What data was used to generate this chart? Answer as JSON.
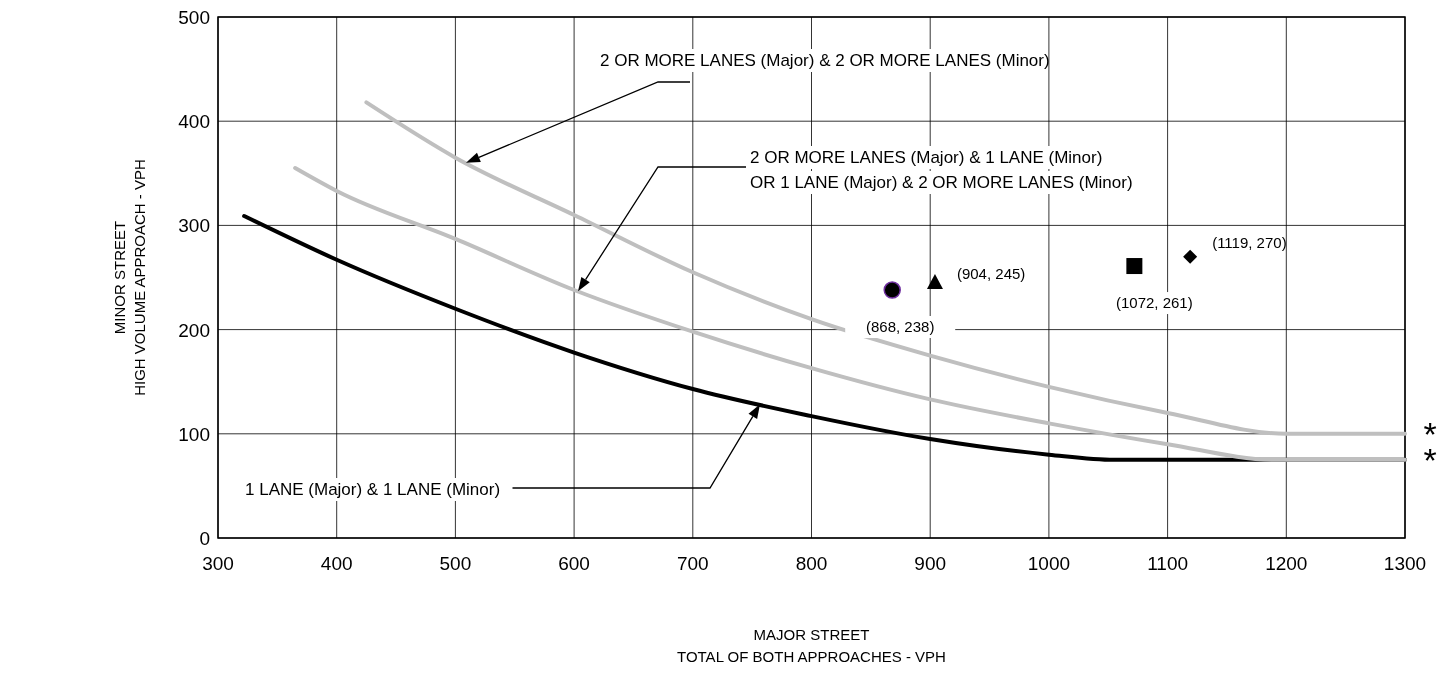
{
  "chart_data": {
    "type": "line",
    "xlabel": "MAJOR STREET\nTOTAL OF BOTH APPROACHES - VPH",
    "ylabel": "MINOR STREET\nHIGH VOLUME APPROACH - VPH",
    "xlim": [
      300,
      1300
    ],
    "xticks": [
      300,
      400,
      500,
      600,
      700,
      800,
      900,
      1000,
      1100,
      1200,
      1300
    ],
    "ylim": [
      0,
      500
    ],
    "yticks": [
      0,
      100,
      200,
      300,
      400,
      500
    ],
    "grid": true,
    "series": [
      {
        "name": "1 LANE (Major) & 1 LANE (Minor)",
        "color": "#000000",
        "x": [
          322,
          400,
          500,
          600,
          700,
          800,
          900,
          1000,
          1055,
          1300
        ],
        "values": [
          309,
          267,
          220,
          178,
          143,
          117,
          95,
          80,
          75,
          75
        ]
      },
      {
        "name": "2 OR MORE LANES (Major) & 1 LANE (Minor)\nOR 1 LANE (Major) & 2 OR MORE LANES (Minor)",
        "color": "#bfbfbf",
        "x": [
          365,
          400,
          500,
          600,
          700,
          800,
          900,
          1000,
          1100,
          1190,
          1300
        ],
        "values": [
          355,
          333,
          287,
          238,
          198,
          163,
          133,
          110,
          90,
          75,
          75
        ]
      },
      {
        "name": "2 OR MORE LANES (Major) & 2 OR MORE LANES (Minor)",
        "color": "#bfbfbf",
        "x": [
          425,
          500,
          600,
          700,
          800,
          900,
          1000,
          1100,
          1200,
          1300
        ],
        "values": [
          418,
          365,
          310,
          255,
          210,
          175,
          145,
          120,
          100,
          100
        ]
      },
      {
        "type": "scatter",
        "marker": "circle",
        "color": "#000000",
        "x": [
          868
        ],
        "values": [
          238
        ],
        "value_labels": [
          "(868, 238)"
        ]
      },
      {
        "type": "scatter",
        "marker": "triangle",
        "color": "#000000",
        "x": [
          904
        ],
        "values": [
          245
        ],
        "value_labels": [
          "(904, 245)"
        ]
      },
      {
        "type": "scatter",
        "marker": "square",
        "color": "#000000",
        "x": [
          1072
        ],
        "values": [
          261
        ],
        "value_labels": [
          "(1072, 261)"
        ]
      },
      {
        "type": "scatter",
        "marker": "diamond",
        "color": "#000000",
        "x": [
          1119
        ],
        "values": [
          270
        ],
        "value_labels": [
          "(1119, 270)"
        ]
      }
    ],
    "annotations": [
      {
        "text": "*",
        "x": 1300,
        "y": 100
      },
      {
        "text": "*",
        "x": 1300,
        "y": 75
      }
    ]
  }
}
